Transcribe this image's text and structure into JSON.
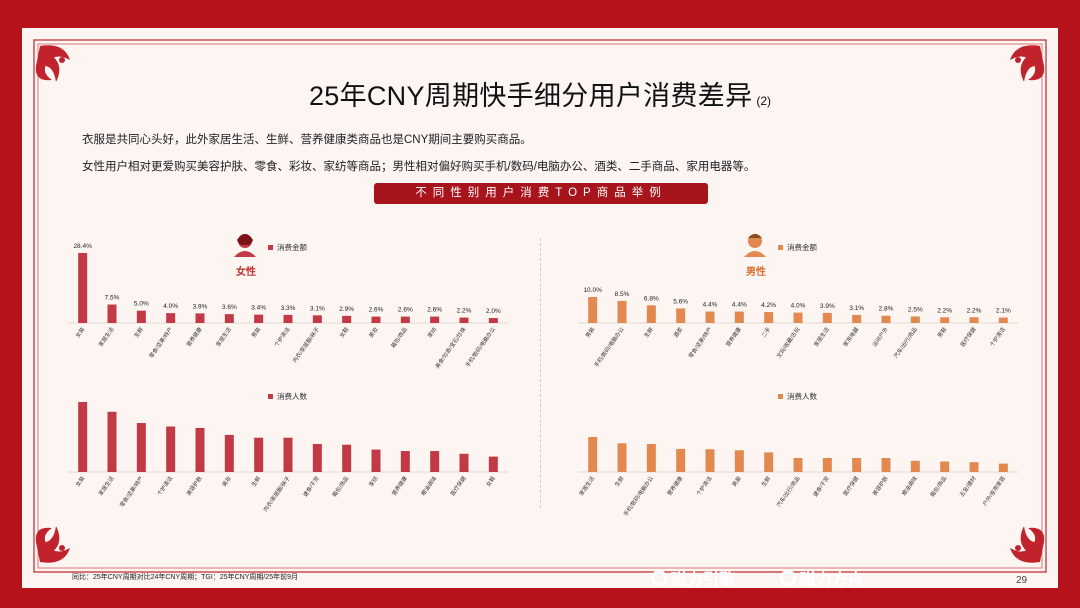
{
  "title": "25年CNY周期快手细分用户消费差异",
  "title_suffix": "(2)",
  "description": [
    "衣服是共同心头好，此外家居生活、生鲜、营养健康类商品也是CNY期间主要购买商品。",
    "女性用户相对更爱购买美容护肤、零食、彩妆、家纺等商品；男性相对偏好购买手机/数码/电脑办公、酒类、二手商品、家用电器等。"
  ],
  "banner": "不同性别用户消费TOP商品举例",
  "footer_note": "同比：25年CNY周期对比24年CNY周期；TGI：25年CNY周期/25年前9月",
  "logos": [
    "磁力引擎",
    "磁力方舟"
  ],
  "logo_separator": "·",
  "page_number": "29",
  "colors": {
    "female": "#c23a45",
    "male": "#e1894f",
    "frame": "#b5121b",
    "panel": "#fcf5f2"
  },
  "chart_data": [
    {
      "type": "bar",
      "group": "女性",
      "legend": "消费金额",
      "categories": [
        "女装",
        "家居生活",
        "生鲜",
        "零食/坚果/特产",
        "营养健康",
        "家居生活",
        "男装",
        "个护清洁",
        "内衣/家居服/袜子",
        "女鞋",
        "美妆",
        "箱包/饰品",
        "家纺",
        "美食/珍奇/宝石/珍珠",
        "手机/数码/电脑办公"
      ],
      "values": [
        28.4,
        7.5,
        5.0,
        4.0,
        3.9,
        3.6,
        3.4,
        3.3,
        3.1,
        2.9,
        2.6,
        2.6,
        2.6,
        2.2,
        2.0
      ],
      "labels": [
        "28.4%",
        "7.5%",
        "5.0%",
        "4.0%",
        "3.9%",
        "3.6%",
        "3.4%",
        "3.3%",
        "3.1%",
        "2.9%",
        "2.6%",
        "2.6%",
        "2.6%",
        "2.2%",
        "2.0%"
      ]
    },
    {
      "type": "bar",
      "group": "女性",
      "legend": "消费人数",
      "categories": [
        "女装",
        "家居生活",
        "零食/坚果/特产",
        "个护清洁",
        "美容护肤",
        "美妆",
        "生鲜",
        "内衣/家居服/袜子",
        "速食/干货",
        "箱包/饰品",
        "家纺",
        "营养健康",
        "粮油调味",
        "医疗保健",
        "女鞋"
      ],
      "values": [
        100,
        86,
        70,
        65,
        63,
        53,
        49,
        49,
        40,
        39,
        32,
        30,
        30,
        26,
        22
      ]
    },
    {
      "type": "bar",
      "group": "男性",
      "legend": "消费金额",
      "categories": [
        "男装",
        "手机/数码/电脑办公",
        "生鲜",
        "酒类",
        "零食/坚果/特产",
        "营养健康",
        "二手",
        "文玩/收藏/古玩",
        "家居生活",
        "家用电器",
        "运动户外",
        "汽车/出行/用品",
        "男鞋",
        "医疗保健",
        "个护清洁"
      ],
      "values": [
        10.0,
        8.5,
        6.8,
        5.6,
        4.4,
        4.4,
        4.2,
        4.0,
        3.9,
        3.1,
        2.8,
        2.5,
        2.2,
        2.2,
        2.1
      ],
      "labels": [
        "10.0%",
        "8.5%",
        "6.8%",
        "5.6%",
        "4.4%",
        "4.4%",
        "4.2%",
        "4.0%",
        "3.9%",
        "3.1%",
        "2.8%",
        "2.5%",
        "2.2%",
        "2.2%",
        "2.1%"
      ]
    },
    {
      "type": "bar",
      "group": "男性",
      "legend": "消费人数",
      "categories": [
        "家居生活",
        "生鲜",
        "手机/数码/电脑办公",
        "营养健康",
        "个护清洁",
        "男装",
        "生鲜",
        "汽车/出行/用品",
        "速食/干货",
        "医疗保健",
        "美容护肤",
        "粮油调味",
        "箱包/饰品",
        "五金/建材",
        "户外/家用家居"
      ],
      "values": [
        100,
        82,
        80,
        66,
        65,
        62,
        56,
        40,
        40,
        40,
        40,
        32,
        30,
        28,
        24
      ]
    }
  ]
}
